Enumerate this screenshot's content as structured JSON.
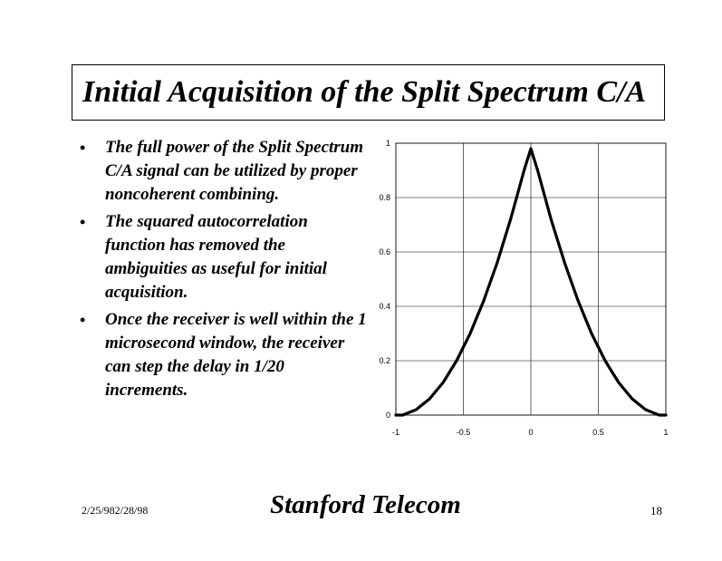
{
  "slide": {
    "title": "Initial Acquisition of the Split Spectrum C/A",
    "bullets": [
      "The full power of the Split Spectrum C/A signal can be utilized by proper noncoherent combining.",
      "The squared autocorrelation function has removed the ambiguities as useful for initial acquisition.",
      "Once the receiver is well within the 1 microsecond window, the receiver can step the delay in 1/20 increments."
    ],
    "bullet_symbol": "•"
  },
  "footer": {
    "date": "2/25/982/28/98",
    "company": "Stanford Telecom",
    "page": "18"
  },
  "chart_data": {
    "type": "line",
    "title": "",
    "xlabel": "",
    "ylabel": "",
    "xlim": [
      -1,
      1
    ],
    "ylim": [
      0,
      1
    ],
    "grid": true,
    "x_ticks": [
      -1,
      -0.5,
      0,
      0.5,
      1
    ],
    "x_tick_labels": [
      "-1",
      "-0.5",
      "0",
      "0.5",
      "1"
    ],
    "y_ticks": [
      0,
      0.2,
      0.4,
      0.6,
      0.8,
      1
    ],
    "y_tick_labels": [
      "0",
      "0.2",
      "0.4",
      "0.6",
      "0.8",
      "1"
    ],
    "series": [
      {
        "color": "#000000",
        "x": [
          -1,
          -0.95,
          -0.9,
          -0.85,
          -0.8,
          -0.75,
          -0.7,
          -0.65,
          -0.6,
          -0.55,
          -0.5,
          -0.45,
          -0.4,
          -0.35,
          -0.3,
          -0.25,
          -0.2,
          -0.15,
          -0.1,
          -0.05,
          0,
          0.05,
          0.1,
          0.15,
          0.2,
          0.25,
          0.3,
          0.35,
          0.4,
          0.45,
          0.5,
          0.55,
          0.6,
          0.65,
          0.7,
          0.75,
          0.8,
          0.85,
          0.9,
          0.95,
          1
        ],
        "values": [
          0.0,
          0.0,
          0.01,
          0.02,
          0.04,
          0.06,
          0.09,
          0.12,
          0.16,
          0.2,
          0.25,
          0.3,
          0.36,
          0.42,
          0.49,
          0.56,
          0.64,
          0.72,
          0.81,
          0.9,
          0.98,
          0.9,
          0.81,
          0.72,
          0.64,
          0.56,
          0.49,
          0.42,
          0.36,
          0.3,
          0.25,
          0.2,
          0.16,
          0.12,
          0.09,
          0.06,
          0.04,
          0.02,
          0.01,
          0.0,
          0.0
        ]
      }
    ]
  }
}
